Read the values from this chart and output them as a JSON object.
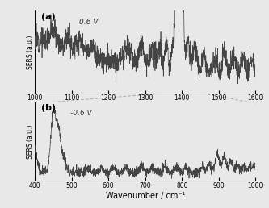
{
  "panel_a": {
    "label": "(a)",
    "voltage": "0.6 V",
    "xlim": [
      1000,
      1600
    ],
    "xticks": [
      1000,
      1100,
      1200,
      1300,
      1400,
      1500,
      1600
    ],
    "ylabel": "SERS (a.u.)"
  },
  "panel_b": {
    "label": "(b)",
    "voltage": "-0.6 V",
    "xlim": [
      400,
      1000
    ],
    "xticks": [
      400,
      500,
      600,
      700,
      800,
      900,
      1000
    ],
    "ylabel": "SERS (a.u.)",
    "xlabel": "Wavenumber / cm⁻¹"
  },
  "bg_color": "#e8e8e8",
  "line_color": "#444444",
  "dot_color": "#aaaaaa",
  "noise_amp": 0.03,
  "seed": 12
}
